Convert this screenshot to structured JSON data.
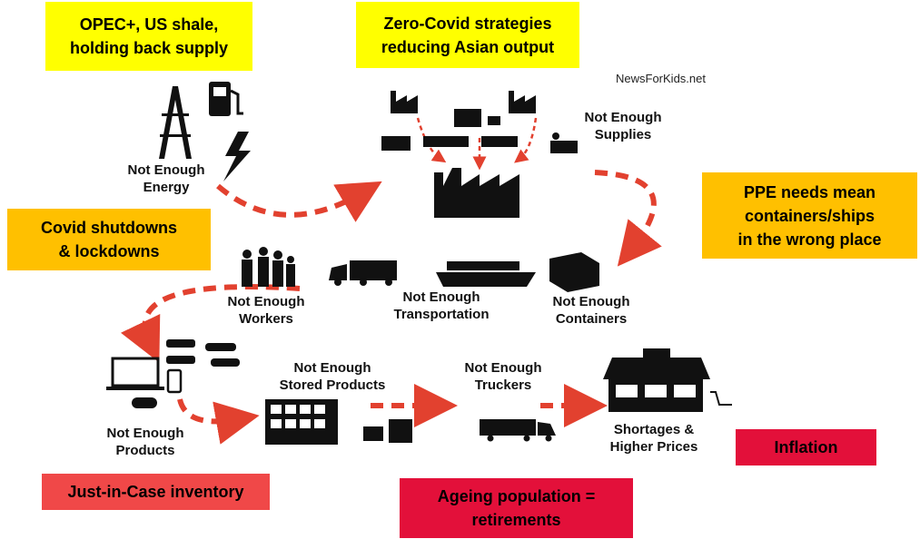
{
  "credit": "NewsForKids.net",
  "callouts": [
    {
      "lines": [
        "OPEC+, US shale,",
        "holding back supply"
      ]
    },
    {
      "lines": [
        "Zero-Covid strategies",
        "reducing Asian output"
      ]
    },
    {
      "lines": [
        "PPE needs mean",
        "containers/ships",
        "in the wrong place"
      ]
    },
    {
      "lines": [
        "Covid shutdowns",
        "& lockdowns"
      ]
    },
    {
      "lines": [
        "Just-in-Case inventory"
      ]
    },
    {
      "lines": [
        "Ageing population =",
        "retirements"
      ]
    },
    {
      "lines": [
        "Inflation"
      ]
    }
  ],
  "labels": [
    {
      "lines": [
        "Not Enough",
        "Energy"
      ]
    },
    {
      "lines": [
        "Not Enough",
        "Supplies"
      ]
    },
    {
      "lines": [
        "Not Enough",
        "Workers"
      ]
    },
    {
      "lines": [
        "Not Enough",
        "Transportation"
      ]
    },
    {
      "lines": [
        "Not Enough",
        "Containers"
      ]
    },
    {
      "lines": [
        "Not Enough",
        "Products"
      ]
    },
    {
      "lines": [
        "Not Enough",
        "Stored Products"
      ]
    },
    {
      "lines": [
        "Not Enough",
        "Truckers"
      ]
    },
    {
      "lines": [
        "Shortages &",
        "Higher Prices"
      ]
    }
  ]
}
